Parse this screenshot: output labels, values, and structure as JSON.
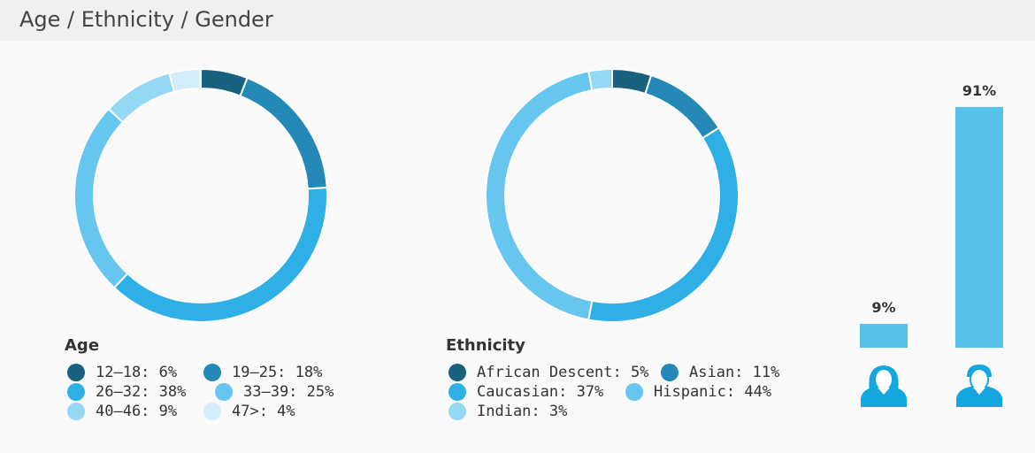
{
  "header": {
    "title": "Age / Ethnicity / Gender"
  },
  "colors": {
    "c1": "#18627f",
    "c2": "#2589b8",
    "c3": "#2eb0e6",
    "c4": "#67c6ef",
    "c5": "#95d8f3",
    "c6": "#d4eef9",
    "bar": "#56c2ea"
  },
  "chart_data": [
    {
      "type": "pie",
      "subtype": "donut",
      "title": "Age",
      "categories": [
        "12-18",
        "19-25",
        "26-32",
        "33-39",
        "40-46",
        "47>"
      ],
      "values": [
        6,
        18,
        38,
        25,
        9,
        4
      ],
      "legend": [
        "12–18: 6%",
        "19–25: 18%",
        "26–32: 38%",
        "33–39: 25%",
        "40–46: 9%",
        "47>: 4%"
      ]
    },
    {
      "type": "pie",
      "subtype": "donut",
      "title": "Ethnicity",
      "categories": [
        "African Descent",
        "Asian",
        "Caucasian",
        "Hispanic",
        "Indian"
      ],
      "values": [
        5,
        11,
        37,
        44,
        3
      ],
      "legend": [
        "African Descent: 5%",
        "Asian: 11%",
        "Caucasian: 37%",
        "Hispanic: 44%",
        "Indian: 3%"
      ]
    },
    {
      "type": "bar",
      "title": "Gender",
      "categories": [
        "female",
        "male"
      ],
      "values": [
        9,
        91
      ],
      "labels": [
        "9%",
        "91%"
      ],
      "ylim": [
        0,
        100
      ]
    }
  ]
}
